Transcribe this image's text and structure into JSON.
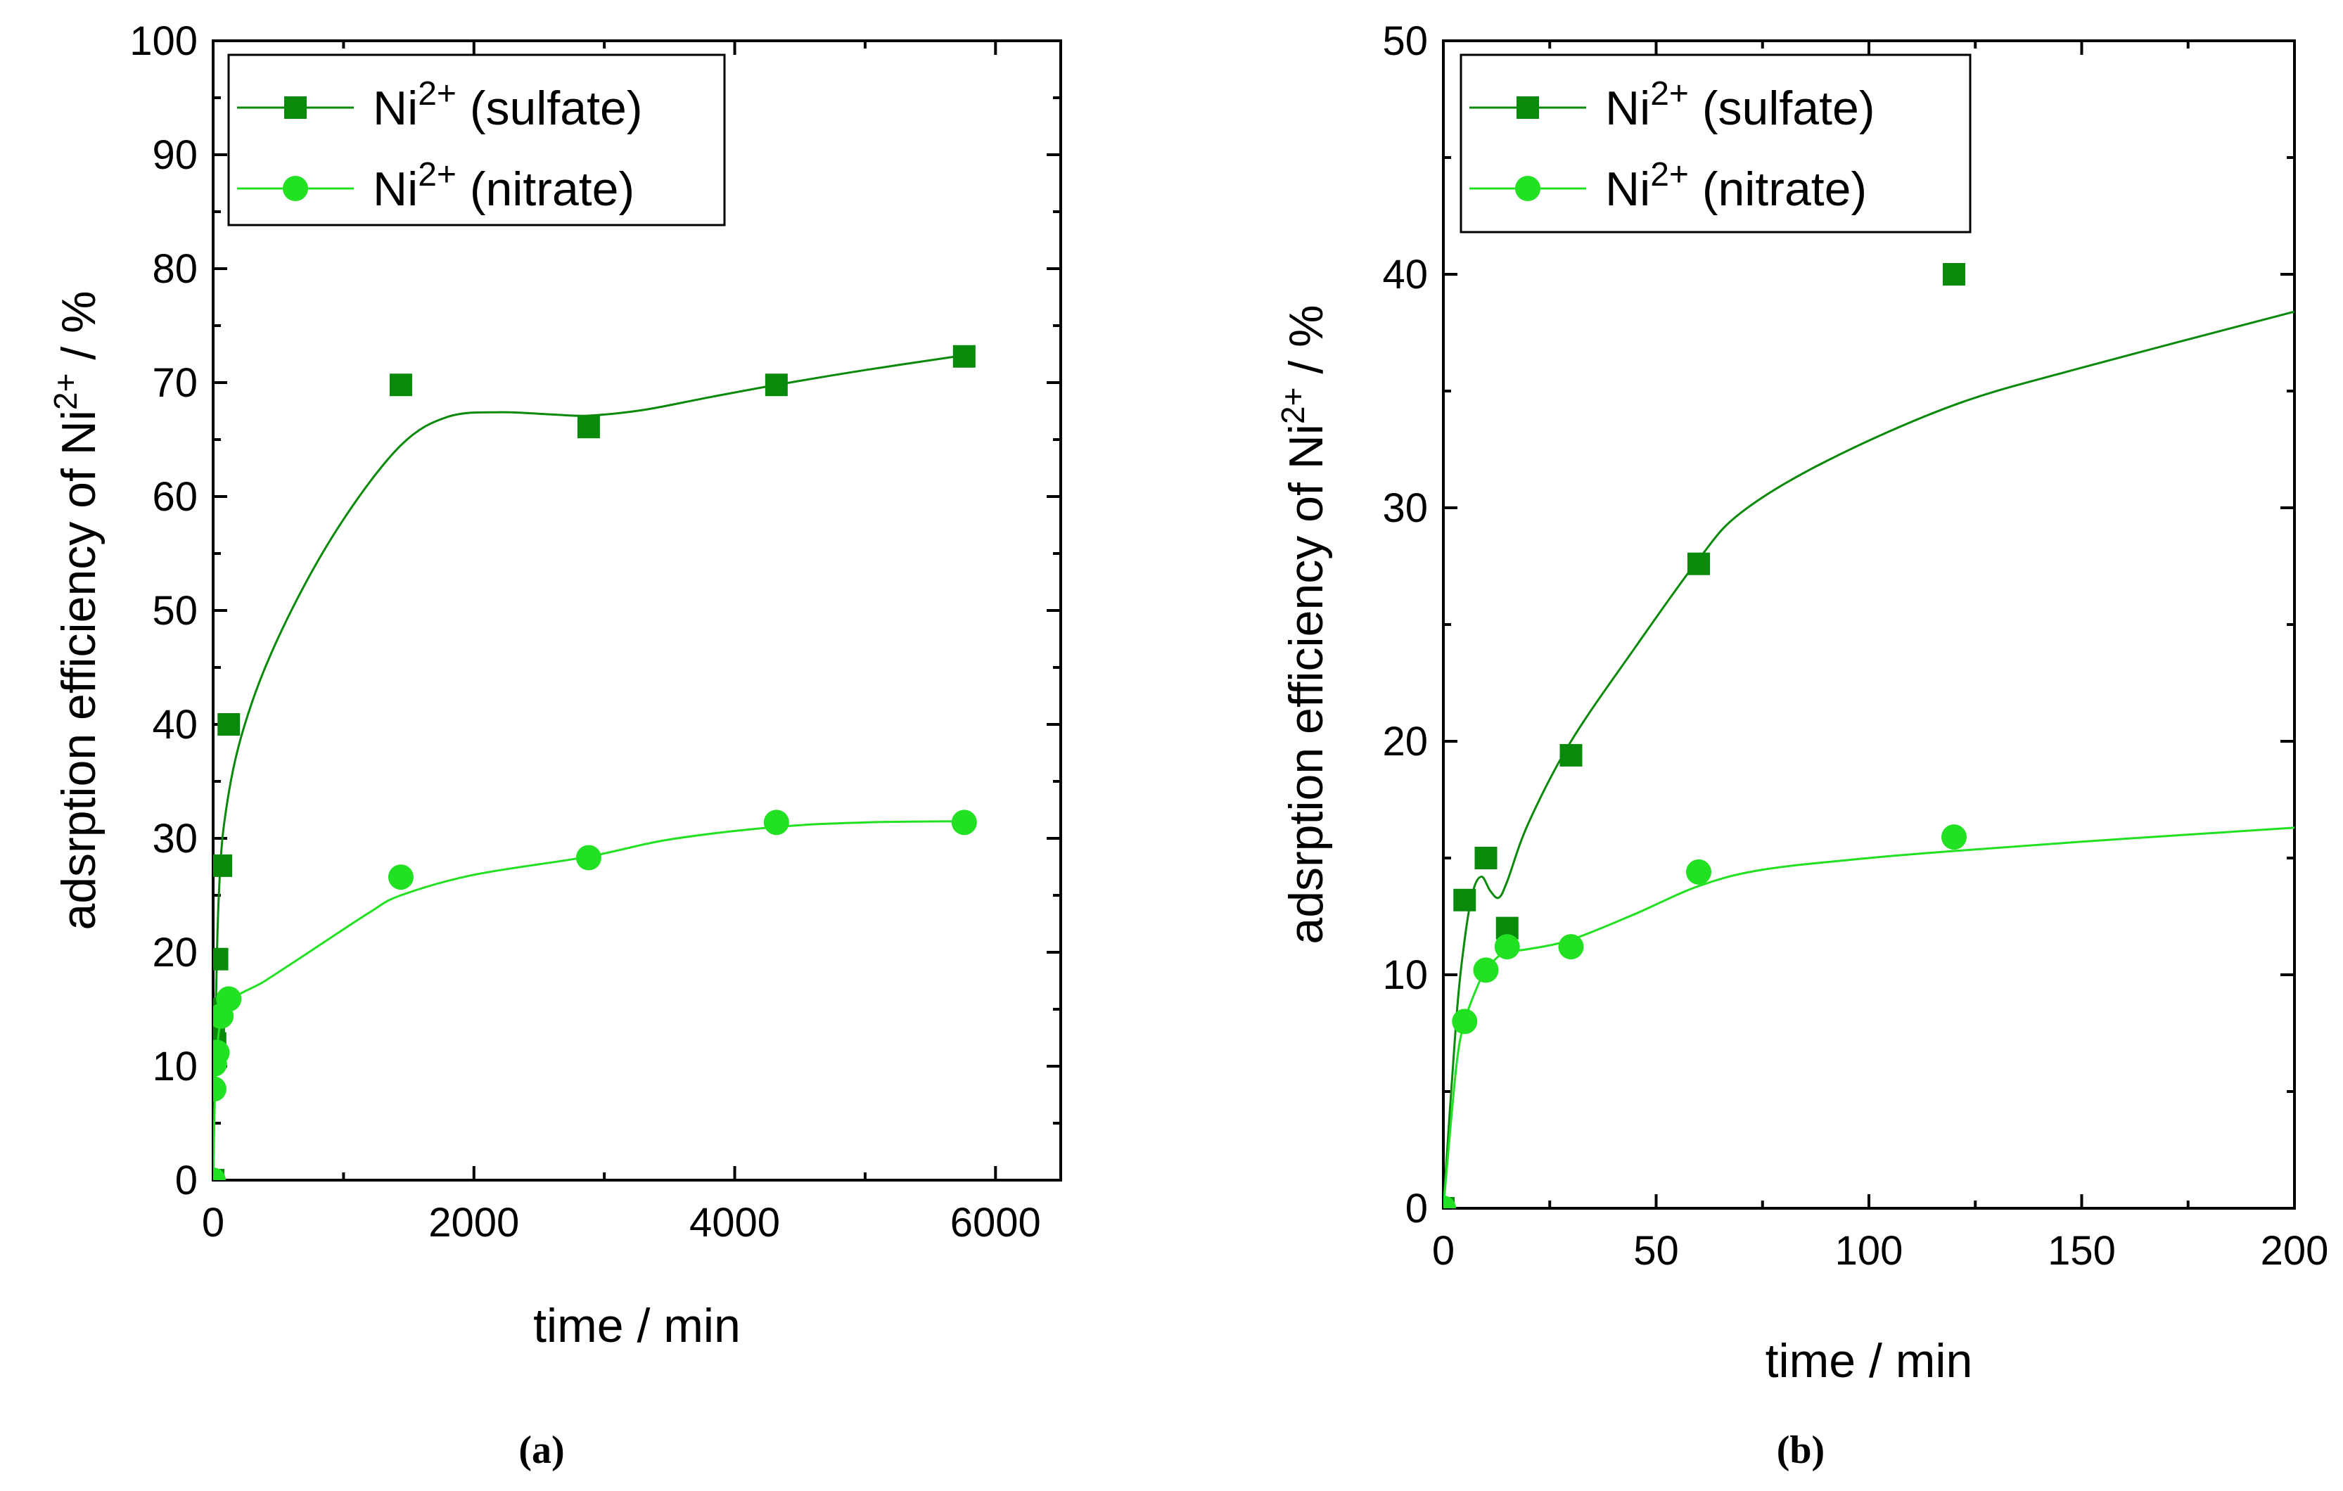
{
  "colors": {
    "sulfate": "#0a8a0a",
    "nitrate": "#22e022",
    "axis": "#000000"
  },
  "chart_data": [
    {
      "type": "scatter",
      "caption": "(a)",
      "xlabel": "time / min",
      "ylabel": "adsrption efficiency of Ni2+ / %",
      "ylabel_parts": {
        "main": "adsrption efficiency of Ni",
        "sup": "2+",
        "tail": " / %"
      },
      "xlim": [
        0,
        6500
      ],
      "ylim": [
        0,
        100
      ],
      "xticks": [
        0,
        2000,
        4000,
        6000
      ],
      "yticks": [
        0,
        10,
        20,
        30,
        40,
        50,
        60,
        70,
        80,
        90,
        100
      ],
      "legend_position": "top-left",
      "series": [
        {
          "name": "Ni2+ (sulfate)",
          "legend": {
            "main": "Ni",
            "sup": "2+",
            "tail": " (sulfate)"
          },
          "marker": "square",
          "color_key": "sulfate",
          "x": [
            0,
            5,
            10,
            15,
            30,
            60,
            120,
            1440,
            2880,
            4320,
            5760
          ],
          "y": [
            0,
            13.2,
            15,
            12,
            19.4,
            27.6,
            40,
            69.8,
            66.1,
            69.8,
            72.3
          ],
          "fit_x": [
            0,
            40,
            120,
            300,
            600,
            1000,
            1440,
            1800,
            2200,
            2600,
            2880,
            3300,
            3800,
            4320,
            5000,
            5760
          ],
          "fit_y": [
            0,
            24,
            34,
            42,
            50,
            58,
            64.5,
            67,
            67.4,
            67.2,
            67.1,
            67.6,
            68.7,
            69.8,
            71.1,
            72.4
          ]
        },
        {
          "name": "Ni2+ (nitrate)",
          "legend": {
            "main": "Ni",
            "sup": "2+",
            "tail": " (nitrate)"
          },
          "marker": "circle",
          "color_key": "nitrate",
          "x": [
            0,
            5,
            10,
            15,
            30,
            60,
            120,
            1440,
            2880,
            4320,
            5760
          ],
          "y": [
            0,
            8,
            10.2,
            11.2,
            11.2,
            14.4,
            15.9,
            26.6,
            28.3,
            31.4,
            31.4
          ],
          "fit_x": [
            0,
            30,
            120,
            400,
            800,
            1200,
            1440,
            2000,
            2880,
            3500,
            4320,
            5000,
            5760
          ],
          "fit_y": [
            0,
            11.5,
            15.5,
            17.5,
            20.5,
            23.5,
            25.0,
            26.8,
            28.4,
            29.9,
            31.0,
            31.4,
            31.5
          ]
        }
      ]
    },
    {
      "type": "scatter",
      "caption": "(b)",
      "xlabel": "time / min",
      "ylabel": "adsrption efficiency of Ni2+ / %",
      "ylabel_parts": {
        "main": "adsrption efficiency of Ni",
        "sup": "2+",
        "tail": " / %"
      },
      "xlim": [
        0,
        200
      ],
      "ylim": [
        0,
        50
      ],
      "xticks": [
        0,
        50,
        100,
        150,
        200
      ],
      "yticks": [
        0,
        10,
        20,
        30,
        40,
        50
      ],
      "legend_position": "top-left",
      "series": [
        {
          "name": "Ni2+ (sulfate)",
          "legend": {
            "main": "Ni",
            "sup": "2+",
            "tail": " (sulfate)"
          },
          "marker": "square",
          "color_key": "sulfate",
          "x": [
            0,
            5,
            10,
            15,
            30,
            60,
            120
          ],
          "y": [
            0,
            13.2,
            15,
            12,
            19.4,
            27.6,
            40
          ],
          "fit_x": [
            0,
            3,
            5,
            7,
            9,
            11,
            13,
            15,
            20,
            30,
            45,
            60,
            70,
            90,
            120,
            150,
            200
          ],
          "fit_y": [
            0,
            8,
            11.5,
            13.6,
            14.2,
            13.6,
            13.3,
            14,
            16.5,
            20,
            24,
            27.8,
            29.8,
            32,
            34.4,
            36,
            38.4
          ]
        },
        {
          "name": "Ni2+ (nitrate)",
          "legend": {
            "main": "Ni",
            "sup": "2+",
            "tail": " (nitrate)"
          },
          "marker": "circle",
          "color_key": "nitrate",
          "x": [
            0,
            5,
            10,
            15,
            30,
            60,
            120
          ],
          "y": [
            0,
            8,
            10.2,
            11.2,
            11.2,
            14.4,
            15.9
          ],
          "fit_x": [
            0,
            3,
            5,
            8,
            10,
            13,
            15,
            20,
            30,
            45,
            60,
            75,
            100,
            120,
            150,
            200
          ],
          "fit_y": [
            0,
            6,
            8,
            9.5,
            10.2,
            10.8,
            11.0,
            11.1,
            11.5,
            12.6,
            13.8,
            14.5,
            15.0,
            15.3,
            15.7,
            16.3
          ]
        }
      ]
    }
  ]
}
